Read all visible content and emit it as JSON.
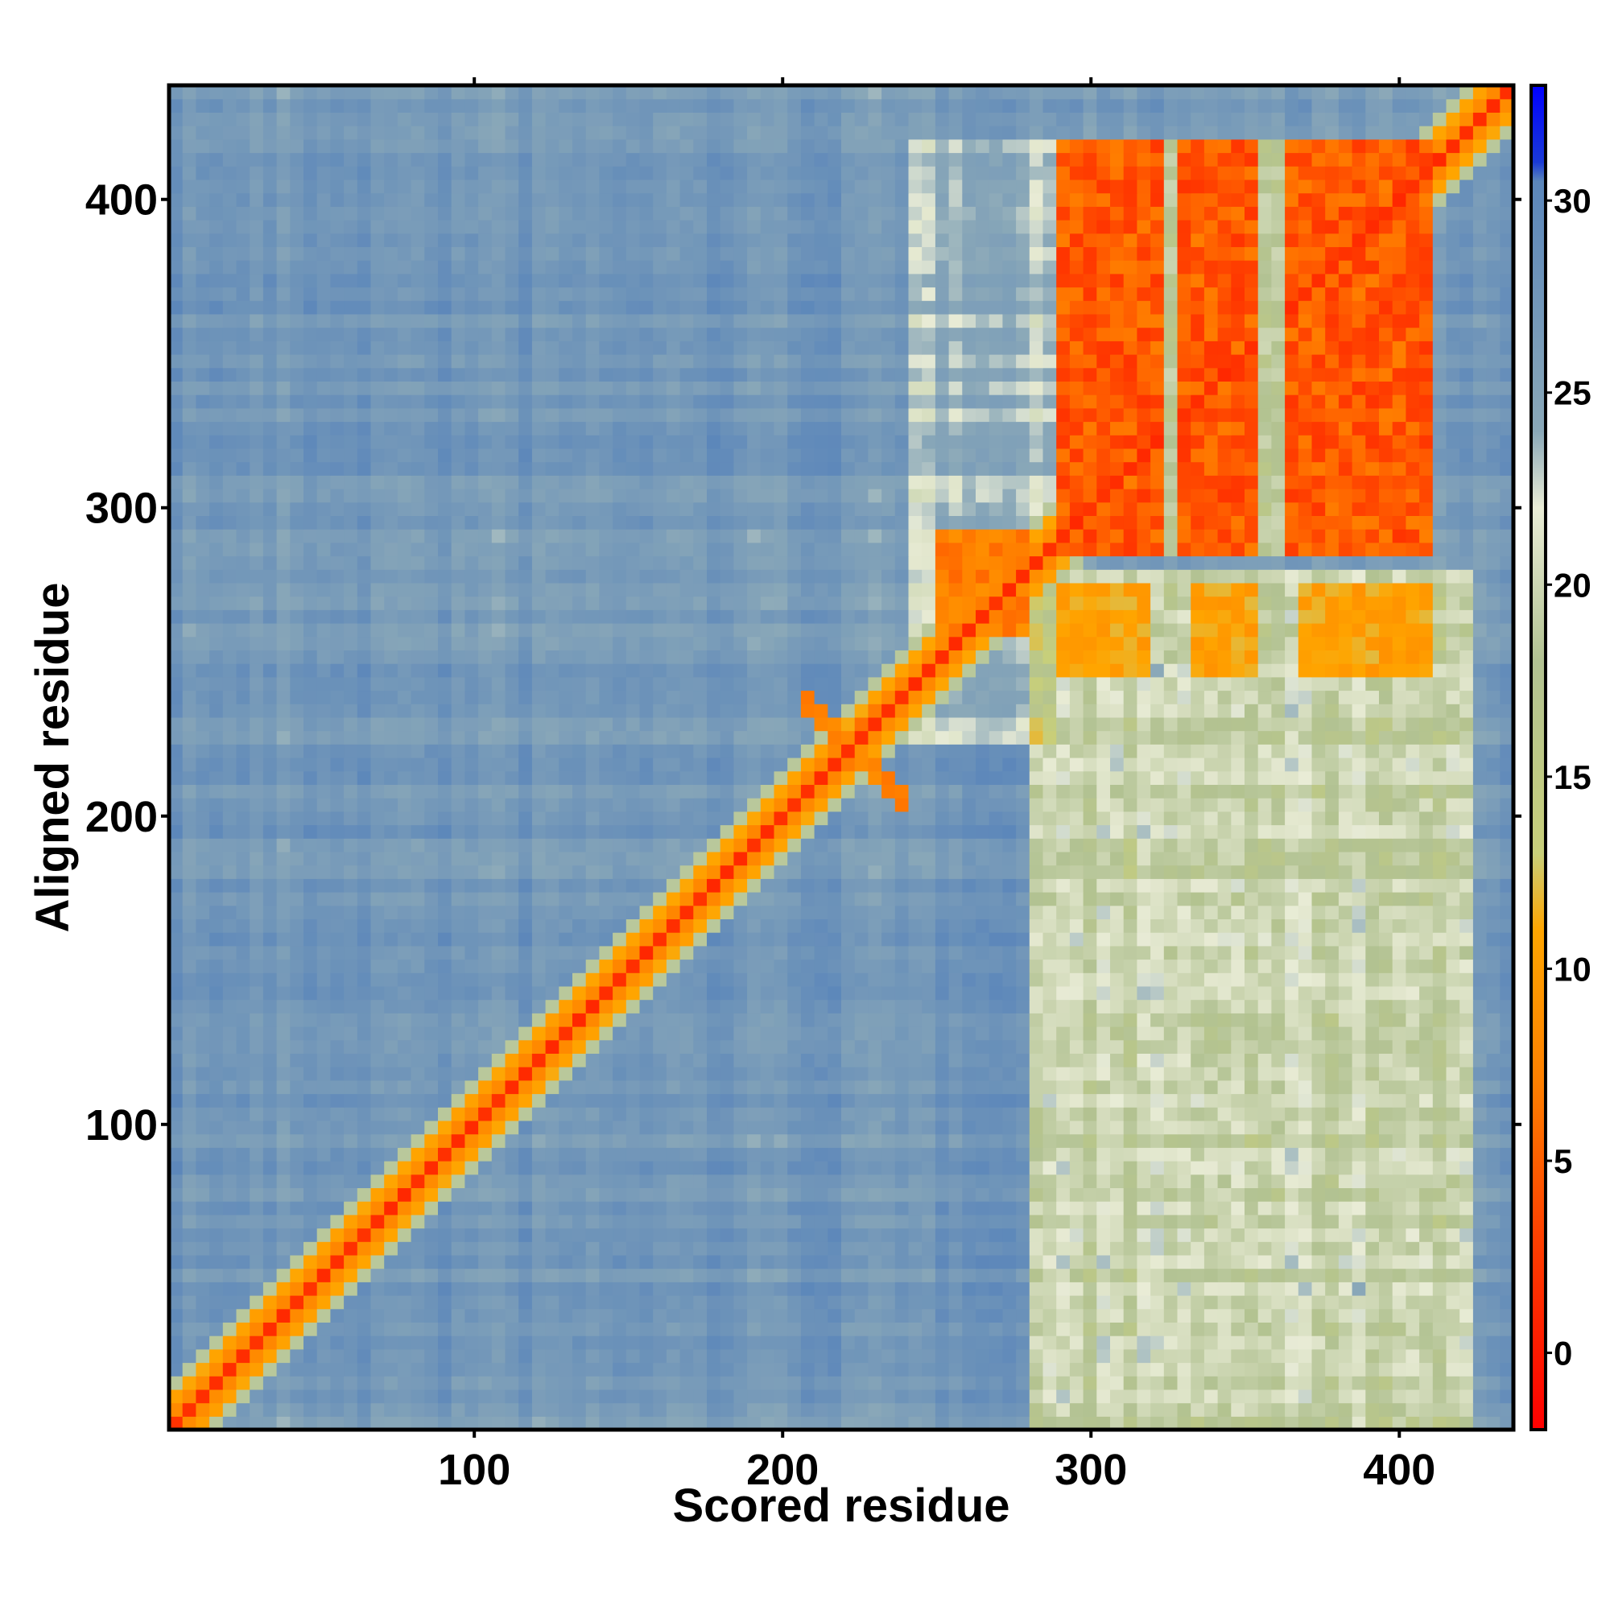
{
  "chart_data": {
    "type": "heatmap",
    "title": "",
    "xlabel": "Scored residue",
    "ylabel": "Aligned residue",
    "xlim": [
      1,
      437
    ],
    "ylim": [
      1,
      437
    ],
    "x_ticks": [
      100,
      200,
      300,
      400
    ],
    "y_ticks": [
      100,
      200,
      300,
      400
    ],
    "colorbar": {
      "ticks": [
        0,
        5,
        10,
        15,
        20,
        25,
        30
      ],
      "range": [
        -2,
        33
      ],
      "stops": [
        {
          "value": -2,
          "color": "#ff0000"
        },
        {
          "value": 3,
          "color": "#ff4000"
        },
        {
          "value": 7,
          "color": "#ff7f00"
        },
        {
          "value": 11,
          "color": "#ffa500"
        },
        {
          "value": 13,
          "color": "#c8cf7a"
        },
        {
          "value": 18,
          "color": "#b2c292"
        },
        {
          "value": 22,
          "color": "#e9ecd6"
        },
        {
          "value": 24,
          "color": "#8aa8b8"
        },
        {
          "value": 30.5,
          "color": "#5b86ba"
        },
        {
          "value": 31,
          "color": "#1a3ad6"
        },
        {
          "value": 33,
          "color": "#0000ff"
        }
      ]
    },
    "description_regions": {
      "background_value": 27,
      "diagonal_value": 1,
      "domain_block": {
        "x": [
          288,
          412
        ],
        "y": [
          285,
          420
        ],
        "value": 2
      },
      "lower_patches": {
        "x": [
          290,
          410
        ],
        "y": [
          245,
          275
        ],
        "value": 9
      },
      "cross_motif_center": [
        222,
        222
      ],
      "mid_patch_center": [
        265,
        275
      ]
    }
  },
  "colors": {
    "background": "#ffffff",
    "frame": "#000000",
    "high_error": "#5b86ba",
    "low_error": "#ff1a00"
  }
}
